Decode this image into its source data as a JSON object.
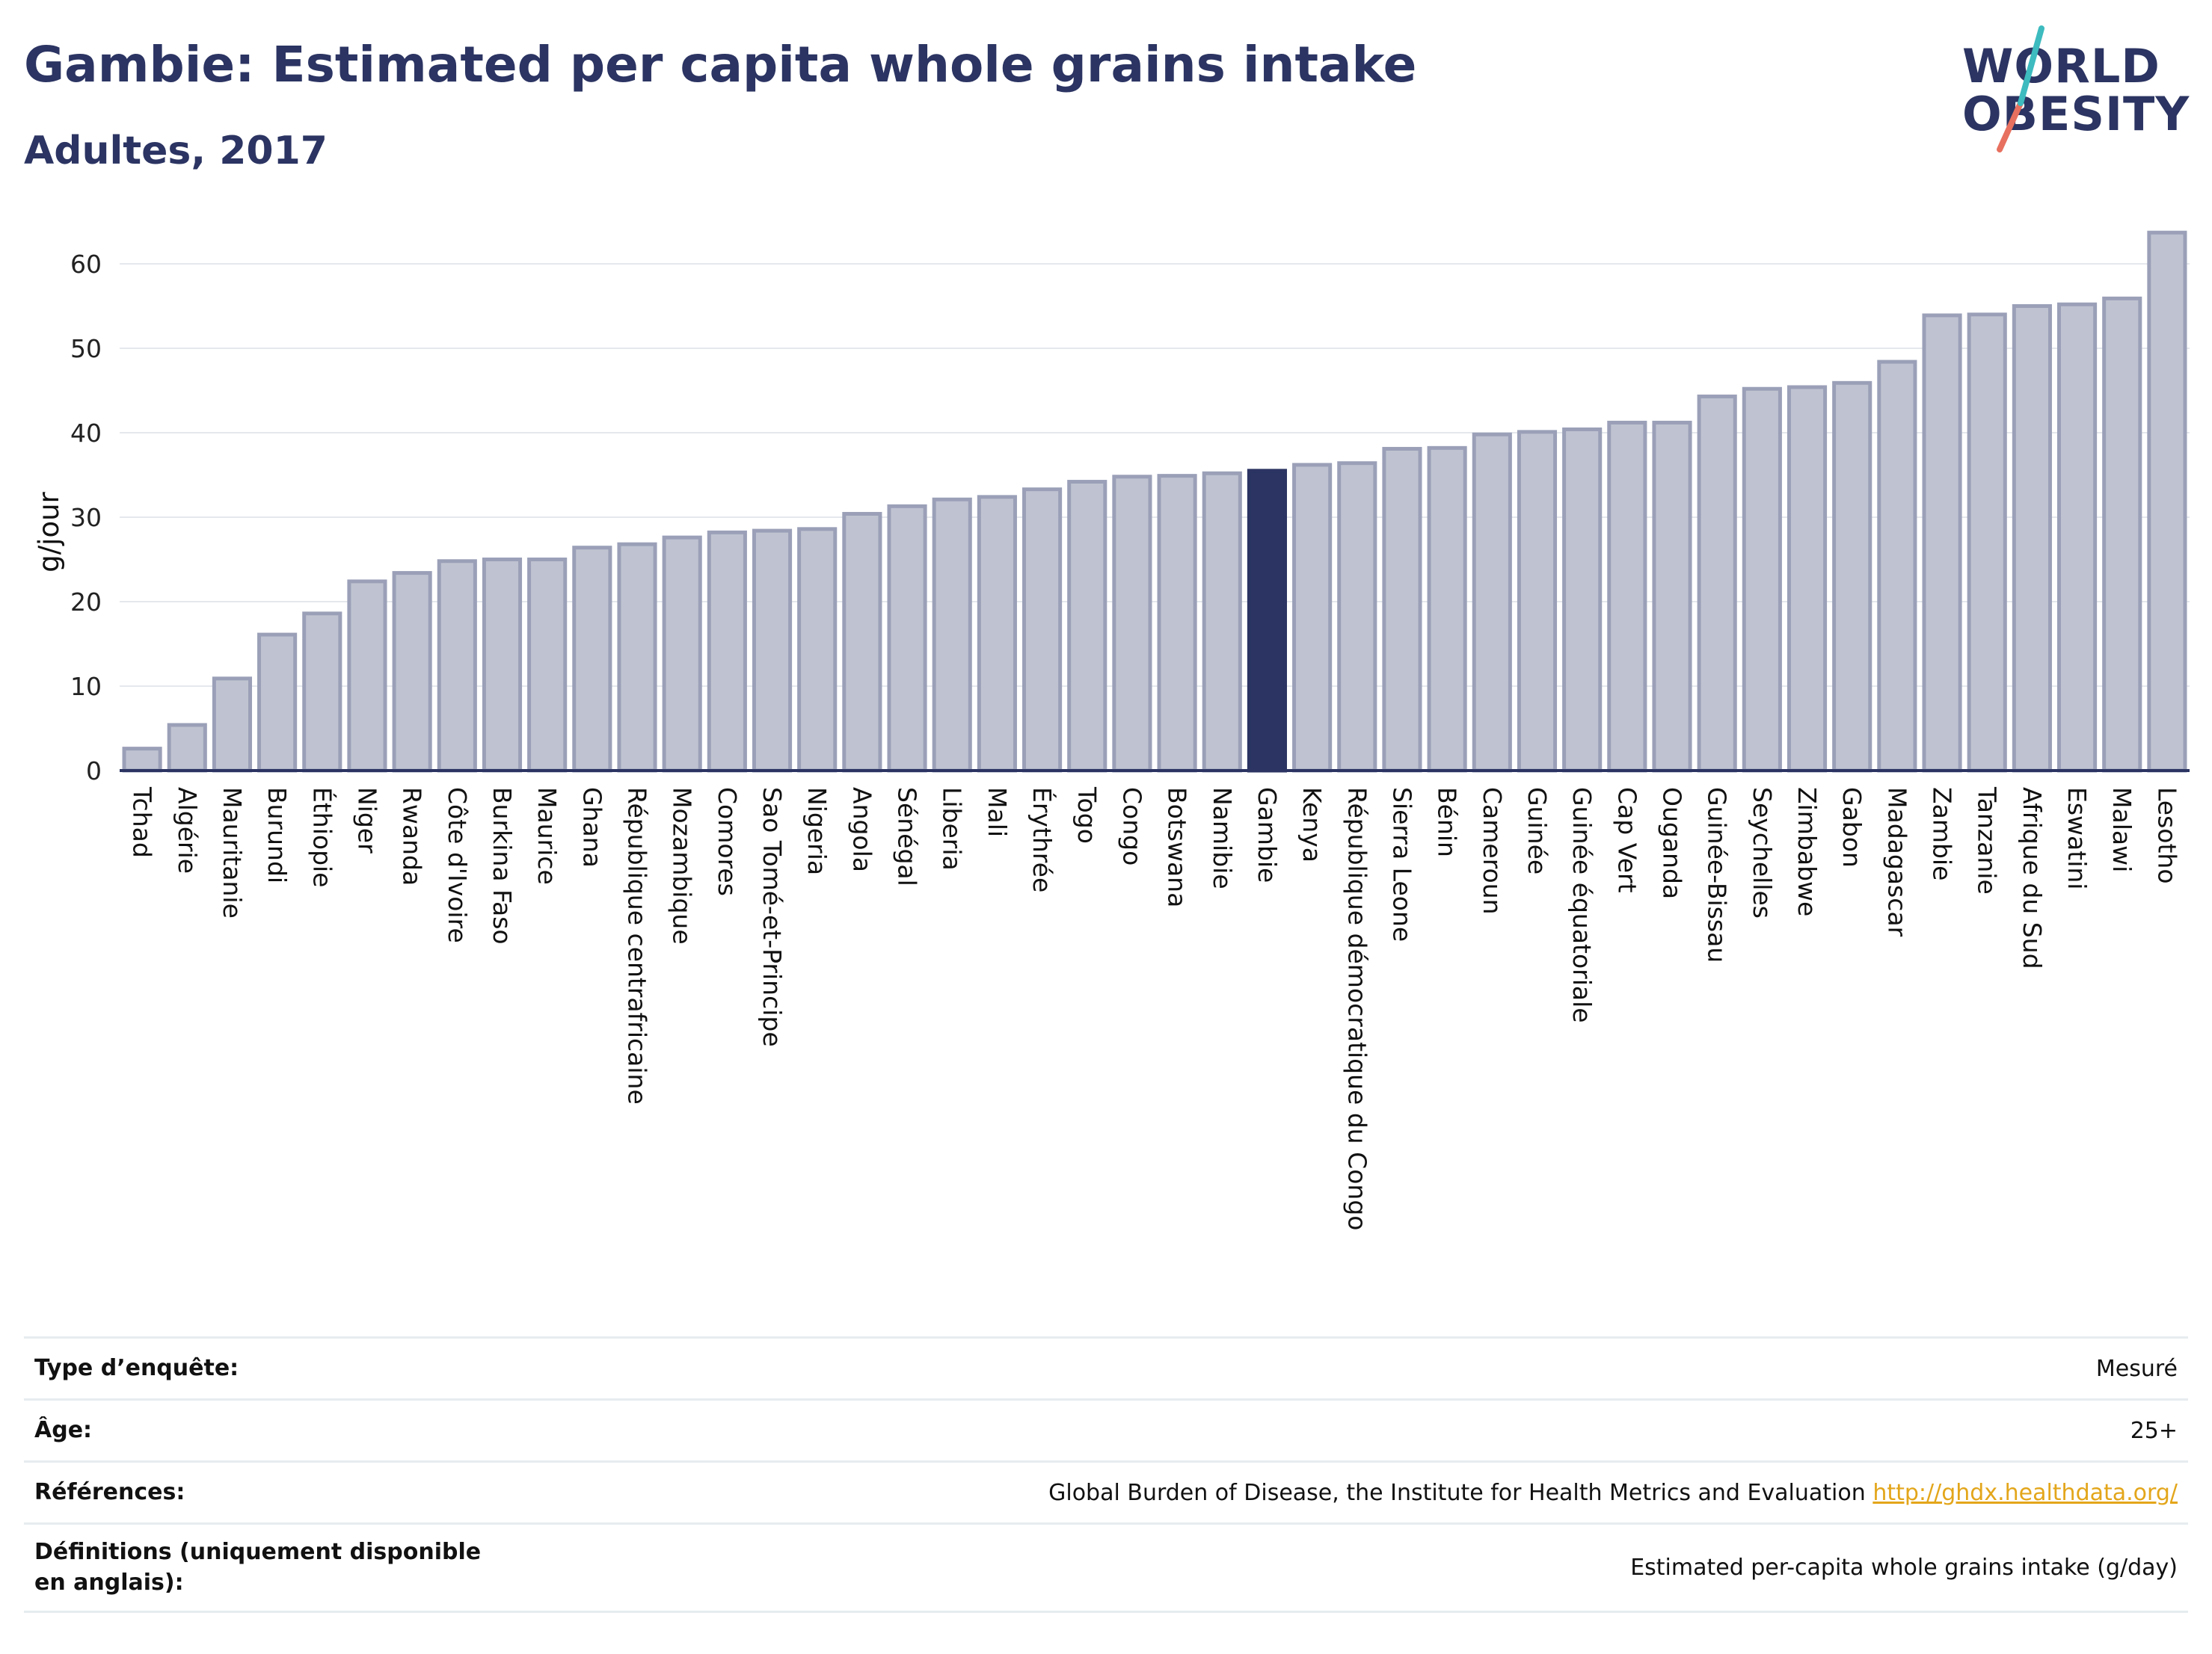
{
  "header": {
    "title": "Gambie: Estimated per capita whole grains intake",
    "subtitle": "Adultes, 2017"
  },
  "logo": {
    "line1": "WORLD",
    "line2": "OBESITY"
  },
  "chart_data": {
    "type": "bar",
    "ylabel": "g/jour",
    "ylim": [
      0,
      65
    ],
    "yticks": [
      0,
      10,
      20,
      30,
      40,
      50,
      60
    ],
    "grid": true,
    "highlight": "Gambie",
    "colors": {
      "bar": "#bfc3d1",
      "bar_stroke": "#9ba0b8",
      "highlight": "#2b3462",
      "grid": "#e5e8ed",
      "axis": "#2b3462"
    },
    "categories": [
      "Tchad",
      "Algérie",
      "Mauritanie",
      "Burundi",
      "Éthiopie",
      "Niger",
      "Rwanda",
      "Côte d'Ivoire",
      "Burkina Faso",
      "Maurice",
      "Ghana",
      "République centrafricaine",
      "Mozambique",
      "Comores",
      "Sao Tomé-et-Principe",
      "Nigeria",
      "Angola",
      "Sénégal",
      "Liberia",
      "Mali",
      "Érythrée",
      "Togo",
      "Congo",
      "Botswana",
      "Namibie",
      "Gambie",
      "Kenya",
      "République démocratique du Congo",
      "Sierra Leone",
      "Bénin",
      "Cameroun",
      "Guinée",
      "Guinée équatoriale",
      "Cap Vert",
      "Ouganda",
      "Guinée-Bissau",
      "Seychelles",
      "Zimbabwe",
      "Gabon",
      "Madagascar",
      "Zambie",
      "Tanzanie",
      "Afrique du Sud",
      "Eswatini",
      "Malawi",
      "Lesotho"
    ],
    "values": [
      2.6,
      5.4,
      10.9,
      16.1,
      18.6,
      22.4,
      23.4,
      24.8,
      25.0,
      25.0,
      26.4,
      26.8,
      27.6,
      28.2,
      28.4,
      28.6,
      30.4,
      31.3,
      32.1,
      32.4,
      33.3,
      34.2,
      34.8,
      34.9,
      35.2,
      35.5,
      36.2,
      36.4,
      38.1,
      38.2,
      39.8,
      40.1,
      40.4,
      41.2,
      41.2,
      44.3,
      45.2,
      45.4,
      45.9,
      48.4,
      53.9,
      54.0,
      55.0,
      55.2,
      55.9,
      63.7
    ]
  },
  "info": {
    "rows": [
      {
        "label": "Type d’enquête:",
        "value": "Mesuré"
      },
      {
        "label": "Âge:",
        "value": "25+"
      },
      {
        "label": "Références:",
        "value": "Global Burden of Disease, the Institute for Health Metrics and Evaluation",
        "link": "http://ghdx.healthdata.org/"
      },
      {
        "label": "Définitions (uniquement disponible en anglais):",
        "value": "Estimated per-capita whole grains intake (g/day)"
      }
    ]
  }
}
